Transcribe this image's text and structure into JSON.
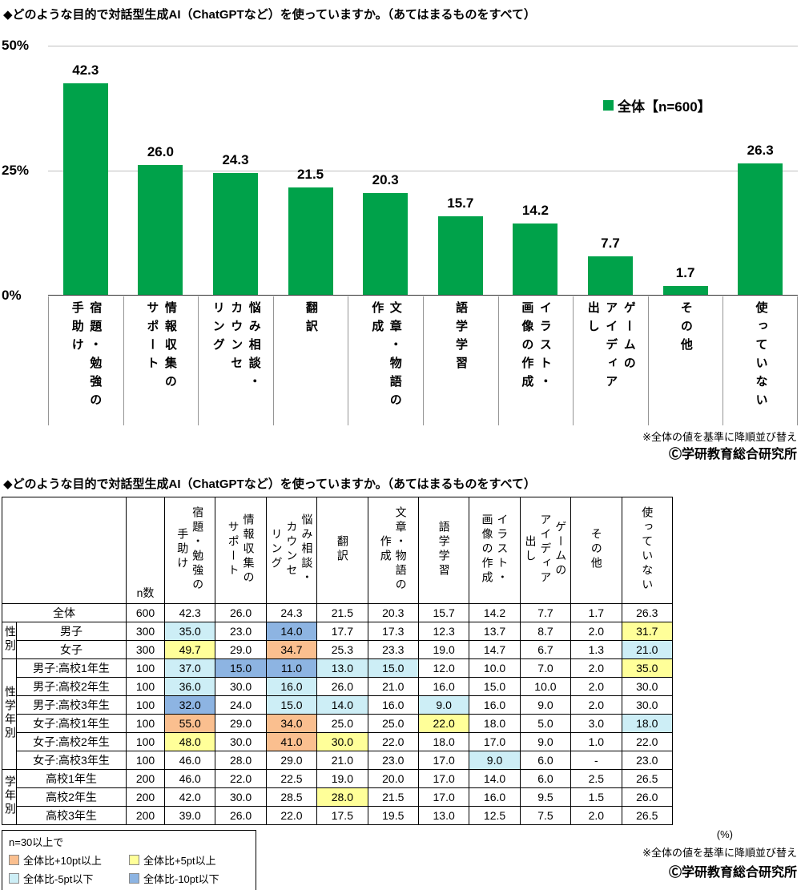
{
  "colors": {
    "bar": "#00a24a",
    "plus10": "#fabf8f",
    "plus5": "#ffff99",
    "minus5": "#cdeef6",
    "minus10": "#8db4e2"
  },
  "chart_section": {
    "title": "◆どのような目的で対話型生成AI（ChatGPTなど）を使っていますか。（あてはまるものをすべて）",
    "sort_note": "※全体の値を基準に降順並び替え",
    "copyright": "Ⓒ学研教育総合研究所"
  },
  "table_section": {
    "title": "◆どのような目的で対話型生成AI（ChatGPTなど）を使っていますか。（あてはまるものをすべて）",
    "n_header": "n数",
    "unit_note": "(%)",
    "sort_note": "※全体の値を基準に降順並び替え",
    "copyright": "Ⓒ学研教育総合研究所",
    "legend": {
      "condition": "n=30以上で",
      "items": [
        {
          "key": "plus10",
          "label": "全体比+10pt以上"
        },
        {
          "key": "plus5",
          "label": "全体比+5pt以上"
        },
        {
          "key": "minus5",
          "label": "全体比-5pt以下"
        },
        {
          "key": "minus10",
          "label": "全体比-10pt以下"
        }
      ]
    }
  },
  "chart_data": [
    {
      "type": "bar",
      "title": "どのような目的で対話型生成AI（ChatGPTなど）を使っていますか。（あてはまるものをすべて）",
      "series_name": "全体【n=600】",
      "categories": [
        "宿題・勉強の手助け",
        "情報収集のサポート",
        "悩み相談・カウンセリング",
        "翻訳",
        "文章・物語の作成",
        "語学学習",
        "イラスト・画像の作成",
        "ゲームのアイディア出し",
        "その他",
        "使っていない"
      ],
      "label_lines": [
        "宿題・勉強の\n手助け",
        "情報収集の\nサポート",
        "悩み相談・\nカウンセ\nリング",
        "翻訳",
        "文章・物語の\n作成",
        "語学学習",
        "イラスト・\n画像の作成",
        "ゲームの\nアイディア\n出し",
        "その他",
        "使っていない"
      ],
      "values": [
        42.3,
        26.0,
        24.3,
        21.5,
        20.3,
        15.7,
        14.2,
        7.7,
        1.7,
        26.3
      ],
      "value_labels": [
        "42.3",
        "26.0",
        "24.3",
        "21.5",
        "20.3",
        "15.7",
        "14.2",
        "7.7",
        "1.7",
        "26.3"
      ],
      "ylabel": "%",
      "ylim": [
        0,
        50
      ],
      "ytick_labels": [
        "50%",
        "25%",
        "0%"
      ],
      "grid": true,
      "legend_position": "upper-right",
      "bar_color": "#00a24a"
    },
    {
      "type": "table",
      "unit": "%",
      "columns": [
        "宿題・勉強の手助け",
        "情報収集のサポート",
        "悩み相談・カウンセリング",
        "翻訳",
        "文章・物語の作成",
        "語学学習",
        "イラスト・画像の作成",
        "ゲームのアイディア出し",
        "その他",
        "使っていない"
      ],
      "column_label_lines": [
        "宿題・勉強の\n手助け",
        "情報収集の\nサポート",
        "悩み相談・\nカウンセ\nリング",
        "翻訳",
        "文章・物語の\n作成",
        "語学学習",
        "イラスト・\n画像の作成",
        "ゲームの\nアイディア\n出し",
        "その他",
        "使っていない"
      ],
      "rows": [
        {
          "group": "",
          "group_rowspan": 0,
          "label": "全体",
          "label_colspan": 2,
          "n": "600",
          "values": [
            "42.3",
            "26.0",
            "24.3",
            "21.5",
            "20.3",
            "15.7",
            "14.2",
            "7.7",
            "1.7",
            "26.3"
          ],
          "hl": [
            "",
            "",
            "",
            "",
            "",
            "",
            "",
            "",
            "",
            ""
          ]
        },
        {
          "group": "性別",
          "group_rowspan": 2,
          "label": "男子",
          "label_colspan": 1,
          "n": "300",
          "values": [
            "35.0",
            "23.0",
            "14.0",
            "17.7",
            "17.3",
            "12.3",
            "13.7",
            "8.7",
            "2.0",
            "31.7"
          ],
          "hl": [
            "minus5",
            "",
            "minus10",
            "",
            "",
            "",
            "",
            "",
            "",
            "plus5"
          ]
        },
        {
          "group": "",
          "group_rowspan": 0,
          "label": "女子",
          "label_colspan": 1,
          "n": "300",
          "values": [
            "49.7",
            "29.0",
            "34.7",
            "25.3",
            "23.3",
            "19.0",
            "14.7",
            "6.7",
            "1.3",
            "21.0"
          ],
          "hl": [
            "plus5",
            "",
            "plus10",
            "",
            "",
            "",
            "",
            "",
            "",
            "minus5"
          ]
        },
        {
          "group": "性学年別",
          "group_rowspan": 6,
          "label": "男子:高校1年生",
          "label_colspan": 1,
          "n": "100",
          "values": [
            "37.0",
            "15.0",
            "11.0",
            "13.0",
            "15.0",
            "12.0",
            "10.0",
            "7.0",
            "2.0",
            "35.0"
          ],
          "hl": [
            "minus5",
            "minus10",
            "minus10",
            "minus5",
            "minus5",
            "",
            "",
            "",
            "",
            "plus5"
          ]
        },
        {
          "group": "",
          "group_rowspan": 0,
          "label": "男子:高校2年生",
          "label_colspan": 1,
          "n": "100",
          "values": [
            "36.0",
            "30.0",
            "16.0",
            "26.0",
            "21.0",
            "16.0",
            "15.0",
            "10.0",
            "2.0",
            "30.0"
          ],
          "hl": [
            "minus5",
            "",
            "minus5",
            "",
            "",
            "",
            "",
            "",
            "",
            ""
          ]
        },
        {
          "group": "",
          "group_rowspan": 0,
          "label": "男子:高校3年生",
          "label_colspan": 1,
          "n": "100",
          "values": [
            "32.0",
            "24.0",
            "15.0",
            "14.0",
            "16.0",
            "9.0",
            "16.0",
            "9.0",
            "2.0",
            "30.0"
          ],
          "hl": [
            "minus10",
            "",
            "minus5",
            "minus5",
            "",
            "minus5",
            "",
            "",
            "",
            ""
          ]
        },
        {
          "group": "",
          "group_rowspan": 0,
          "label": "女子:高校1年生",
          "label_colspan": 1,
          "n": "100",
          "values": [
            "55.0",
            "29.0",
            "34.0",
            "25.0",
            "25.0",
            "22.0",
            "18.0",
            "5.0",
            "3.0",
            "18.0"
          ],
          "hl": [
            "plus10",
            "",
            "plus10",
            "",
            "",
            "plus5",
            "",
            "",
            "",
            "minus5"
          ]
        },
        {
          "group": "",
          "group_rowspan": 0,
          "label": "女子:高校2年生",
          "label_colspan": 1,
          "n": "100",
          "values": [
            "48.0",
            "30.0",
            "41.0",
            "30.0",
            "22.0",
            "18.0",
            "17.0",
            "9.0",
            "1.0",
            "22.0"
          ],
          "hl": [
            "plus5",
            "",
            "plus10",
            "plus5",
            "",
            "",
            "",
            "",
            "",
            ""
          ]
        },
        {
          "group": "",
          "group_rowspan": 0,
          "label": "女子:高校3年生",
          "label_colspan": 1,
          "n": "100",
          "values": [
            "46.0",
            "28.0",
            "29.0",
            "21.0",
            "23.0",
            "17.0",
            "9.0",
            "6.0",
            "-",
            "23.0"
          ],
          "hl": [
            "",
            "",
            "",
            "",
            "",
            "",
            "minus5",
            "",
            "",
            ""
          ]
        },
        {
          "group": "学年別",
          "group_rowspan": 3,
          "label": "高校1年生",
          "label_colspan": 1,
          "n": "200",
          "values": [
            "46.0",
            "22.0",
            "22.5",
            "19.0",
            "20.0",
            "17.0",
            "14.0",
            "6.0",
            "2.5",
            "26.5"
          ],
          "hl": [
            "",
            "",
            "",
            "",
            "",
            "",
            "",
            "",
            "",
            ""
          ]
        },
        {
          "group": "",
          "group_rowspan": 0,
          "label": "高校2年生",
          "label_colspan": 1,
          "n": "200",
          "values": [
            "42.0",
            "30.0",
            "28.5",
            "28.0",
            "21.5",
            "17.0",
            "16.0",
            "9.5",
            "1.5",
            "26.0"
          ],
          "hl": [
            "",
            "",
            "",
            "plus5",
            "",
            "",
            "",
            "",
            "",
            ""
          ]
        },
        {
          "group": "",
          "group_rowspan": 0,
          "label": "高校3年生",
          "label_colspan": 1,
          "n": "200",
          "values": [
            "39.0",
            "26.0",
            "22.0",
            "17.5",
            "19.5",
            "13.0",
            "12.5",
            "7.5",
            "2.0",
            "26.5"
          ],
          "hl": [
            "",
            "",
            "",
            "",
            "",
            "",
            "",
            "",
            "",
            ""
          ]
        }
      ]
    }
  ]
}
